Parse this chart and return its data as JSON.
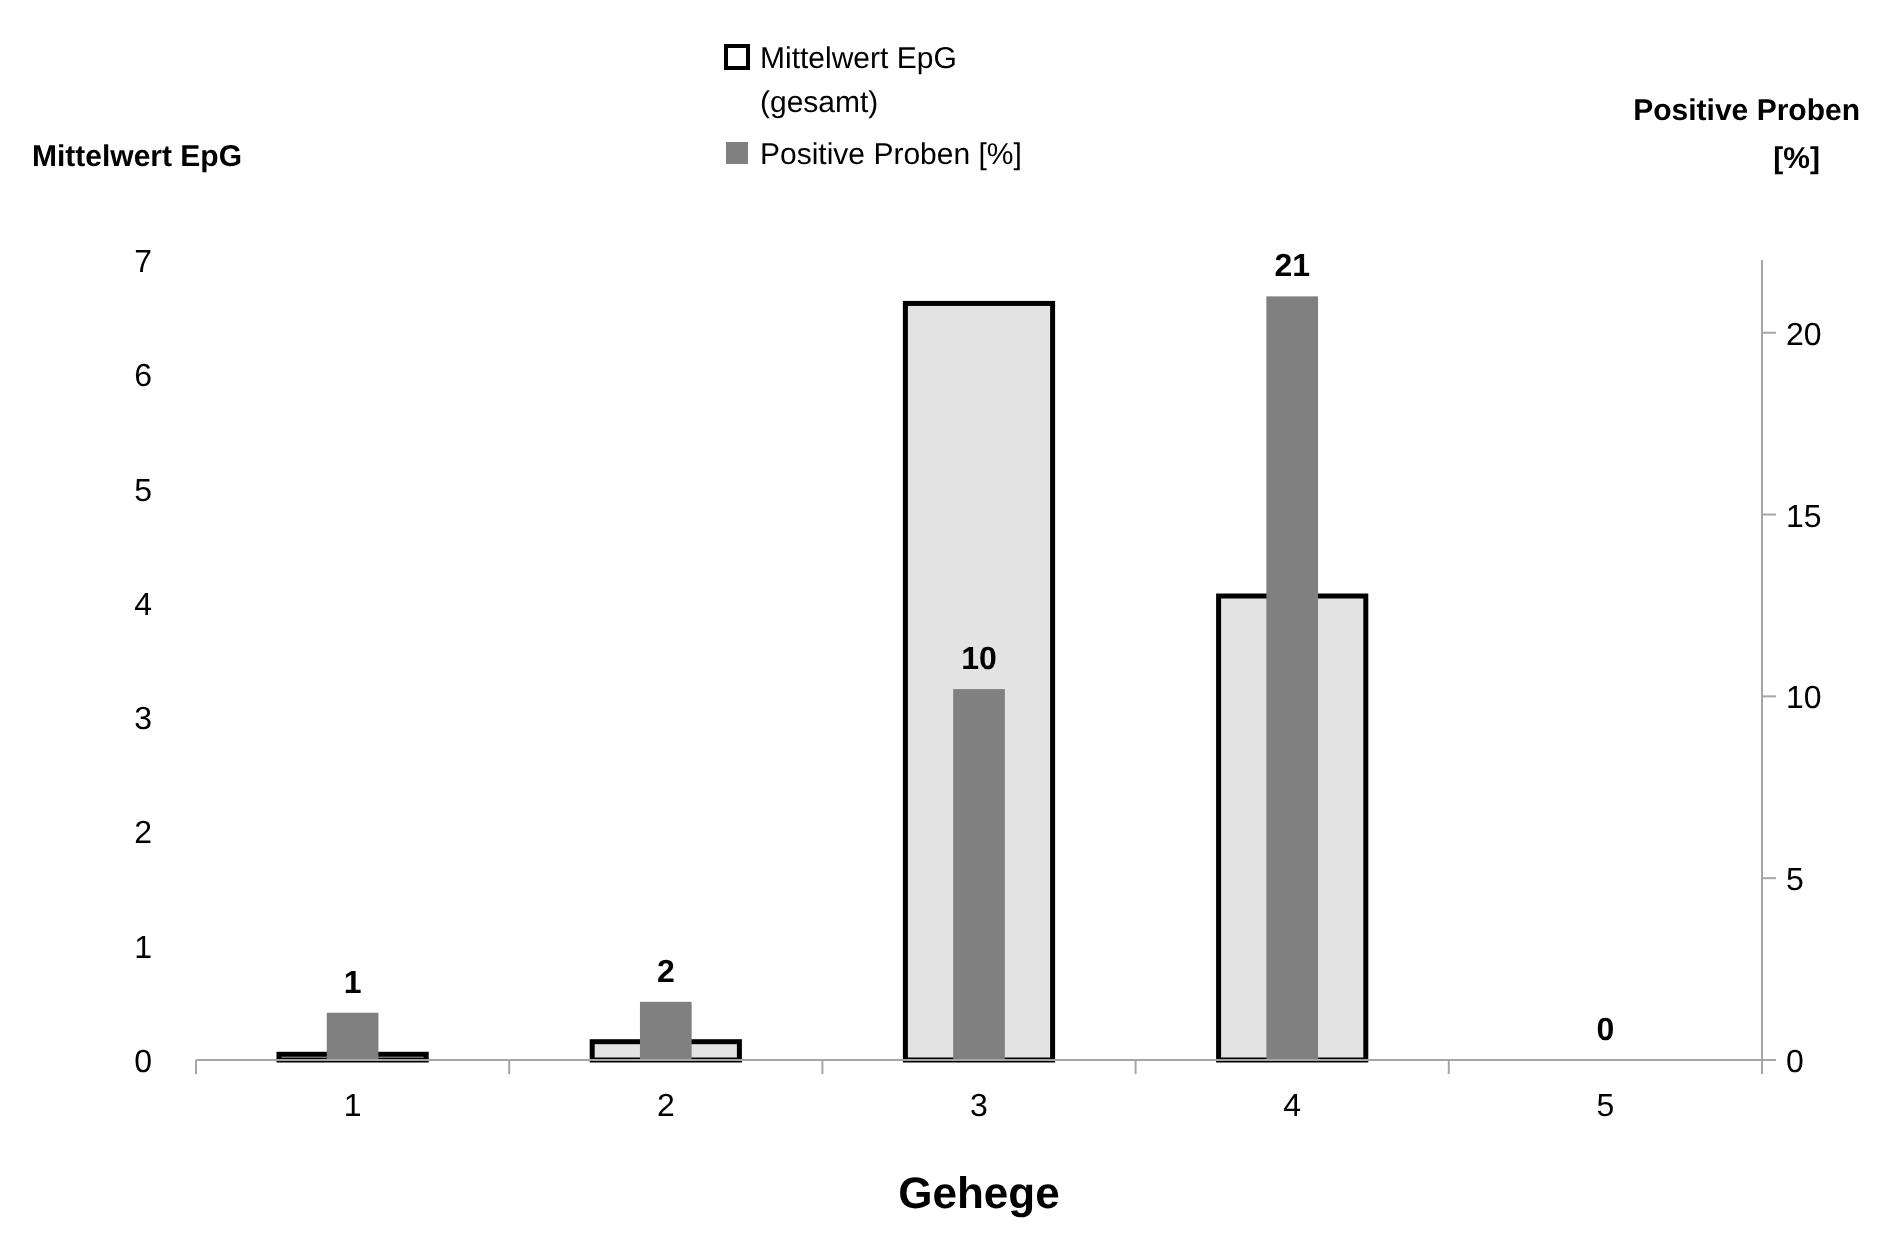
{
  "chart_data": {
    "type": "bar",
    "xlabel": "Gehege",
    "ylabel": "Mittelwert EpG",
    "y2label": "Positive Proben [%]",
    "categories": [
      "1",
      "2",
      "3",
      "4",
      "5"
    ],
    "series": [
      {
        "name": "Mittelwert EpG (gesamt)",
        "color": "#e3e3e3",
        "values": [
          0.05,
          0.16,
          6.62,
          4.06,
          0
        ]
      },
      {
        "name": "Positive Proben [%]",
        "color": "#808080",
        "axis": "y2",
        "values": [
          1.3,
          1.6,
          10.2,
          21,
          0
        ],
        "value_labels": [
          "1",
          "2",
          "10",
          "21",
          "0"
        ]
      }
    ],
    "ylim": [
      0,
      7
    ],
    "yticks": [
      0,
      1,
      2,
      3,
      4,
      5,
      6,
      7
    ],
    "y2lim": [
      0,
      22
    ],
    "y2ticks": [
      0,
      5,
      10,
      15,
      20
    ],
    "grid": false,
    "legend": "top"
  }
}
